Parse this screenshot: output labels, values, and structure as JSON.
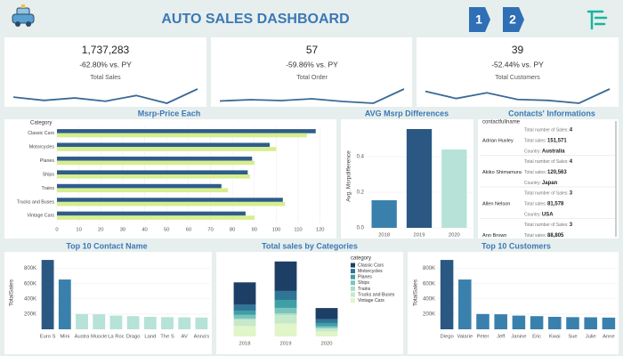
{
  "header": {
    "title": "AUTO SALES DASHBOARD",
    "buttons": [
      "1",
      "2"
    ]
  },
  "kpis": [
    {
      "value": "1,737,283",
      "change": "-62.80% vs. PY",
      "label": "Total Sales",
      "trend": [
        40,
        32,
        38,
        30,
        44,
        25,
        60
      ]
    },
    {
      "value": "57",
      "change": "-59.86% vs. PY",
      "label": "Total Order",
      "trend": [
        35,
        38,
        36,
        40,
        34,
        30,
        62
      ]
    },
    {
      "value": "39",
      "change": "-52.44% vs. PY",
      "label": "Total Customers",
      "trend": [
        55,
        40,
        52,
        38,
        36,
        30,
        60
      ]
    }
  ],
  "contacts": {
    "title": "Contacts' Informations",
    "header": "contactfullname",
    "labels": [
      "Total number of Sales:",
      "Total sales:",
      "Country:"
    ],
    "rows": [
      {
        "name": "Adrian Huxley",
        "fields": [
          "4",
          "151,571",
          "Australia"
        ]
      },
      {
        "name": "Akiko Shimamura",
        "fields": [
          "4",
          "120,563",
          "Japan"
        ]
      },
      {
        "name": "Allen Nelson",
        "fields": [
          "3",
          "81,578",
          "USA"
        ]
      },
      {
        "name": "Ann Brown",
        "fields": [
          "3",
          "88,805"
        ]
      }
    ]
  },
  "chart_data": [
    {
      "type": "bar",
      "orientation": "horizontal",
      "title": "Msrp-Price Each",
      "category_label": "Category",
      "categories": [
        "Classic Cars",
        "Motorcycles",
        "Planes",
        "Ships",
        "Trains",
        "Trucks and Buses",
        "Vintage Cars"
      ],
      "series": [
        {
          "color": "#2f5d8a",
          "values": [
            118,
            97,
            89,
            87,
            75,
            103,
            86
          ]
        },
        {
          "color": "#d6ee8e",
          "values": [
            114,
            100,
            90,
            88,
            78,
            104,
            90
          ]
        }
      ],
      "xlim": [
        0,
        125
      ],
      "xticks": [
        0,
        10,
        20,
        30,
        40,
        50,
        60,
        70,
        80,
        90,
        100,
        110,
        120
      ],
      "grid": true
    },
    {
      "type": "bar",
      "title": "AVG Msrp Differences",
      "ylabel": "Avg. Msrpdifference",
      "categories": [
        "2018",
        "2019",
        "2020"
      ],
      "values": [
        0.155,
        0.555,
        0.44
      ],
      "colors": [
        "#3a80ad",
        "#2a5883",
        "#b6e2d8"
      ],
      "ylim": [
        0,
        0.58
      ],
      "yticks": [
        {
          "value": 0,
          "label": "0.0"
        },
        0.2,
        0.4
      ],
      "grid": true
    },
    {
      "type": "bar",
      "title": "Top 10 Contact Name",
      "ylabel": "TotalSales",
      "categories": [
        "Euro S",
        "Mini",
        "Austra",
        "Muscle",
        "La Roc",
        "Drago",
        "Land",
        "The S",
        "AV",
        "Anna's"
      ],
      "values": [
        912294,
        654858,
        200995,
        197736,
        180124,
        172989,
        164069,
        160010,
        157807,
        153996
      ],
      "colors": [
        "#2a5883",
        "#3a80ad",
        "#b6e2d8",
        "#b6e2d8",
        "#b6e2d8",
        "#b6e2d8",
        "#b6e2d8",
        "#b6e2d8",
        "#b6e2d8",
        "#b6e2d8"
      ],
      "ylim": [
        0,
        960000
      ],
      "yticks": [
        {
          "value": 200000,
          "label": "200K"
        },
        {
          "value": 400000,
          "label": "400K"
        },
        {
          "value": 600000,
          "label": "600K"
        },
        {
          "value": 800000,
          "label": "800K"
        }
      ],
      "grid": true
    },
    {
      "type": "bar",
      "stacked": true,
      "title": "Total sales by Categories",
      "legend_title": "category",
      "categories": [
        "2018",
        "2019",
        "2020"
      ],
      "series": [
        {
          "name": "Classic Cars",
          "color": "#1d3f66",
          "values": [
            1400000,
            1850000,
            690000
          ]
        },
        {
          "name": "Motorcycles",
          "color": "#2f7596",
          "values": [
            370000,
            560000,
            250000
          ]
        },
        {
          "name": "Planes",
          "color": "#3e9fa6",
          "values": [
            270000,
            500000,
            200000
          ]
        },
        {
          "name": "Ships",
          "color": "#7cc4bb",
          "values": [
            230000,
            340000,
            120000
          ]
        },
        {
          "name": "Trains",
          "color": "#a9dccb",
          "values": [
            70000,
            120000,
            40000
          ]
        },
        {
          "name": "Trucks and Buses",
          "color": "#c6e9c9",
          "values": [
            400000,
            530000,
            170000
          ]
        },
        {
          "name": "Vintage Cars",
          "color": "#e0f5c8",
          "values": [
            650000,
            800000,
            310000
          ]
        }
      ],
      "ylim": [
        0,
        4800000
      ]
    },
    {
      "type": "bar",
      "title": "Top 10 Customers",
      "ylabel": "TotalSales",
      "categories": [
        "Diego",
        "Valarie",
        "Peter",
        "Jeff",
        "Janine",
        "Eric",
        "Kwai",
        "Sue",
        "Julie",
        "Anne"
      ],
      "values": [
        912294,
        654858,
        200995,
        197736,
        180124,
        172989,
        164069,
        160010,
        157807,
        153996
      ],
      "colors": [
        "#2a5883",
        "#3a80ad",
        "#3a80ad",
        "#3a80ad",
        "#3a80ad",
        "#3a80ad",
        "#3a80ad",
        "#3a80ad",
        "#3a80ad",
        "#3a80ad"
      ],
      "ylim": [
        0,
        960000
      ],
      "yticks": [
        {
          "value": 200000,
          "label": "200K"
        },
        {
          "value": 400000,
          "label": "400K"
        },
        {
          "value": 600000,
          "label": "600K"
        },
        {
          "value": 800000,
          "label": "800K"
        }
      ],
      "grid": true
    }
  ]
}
